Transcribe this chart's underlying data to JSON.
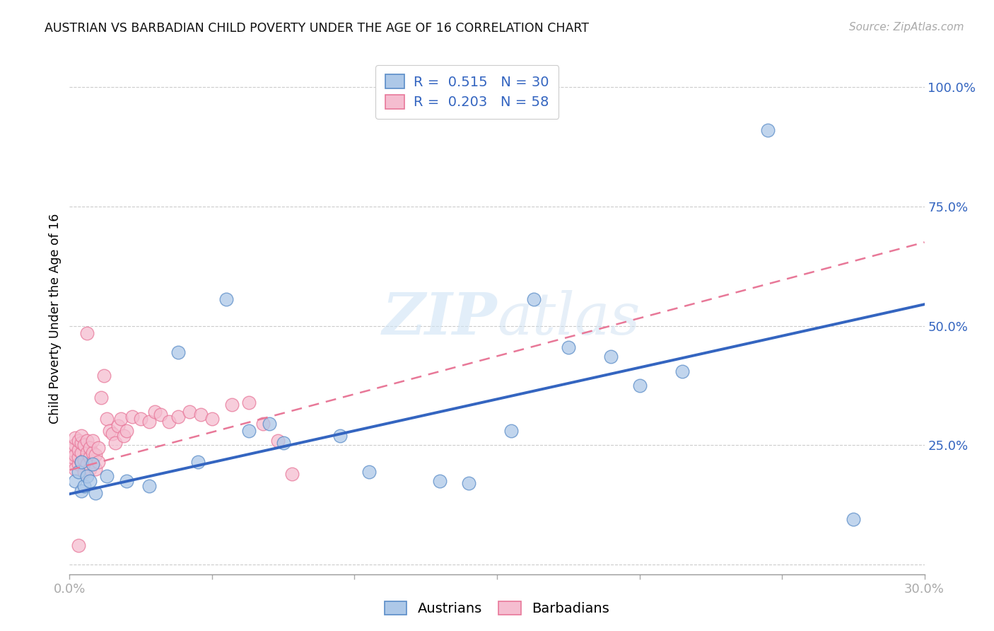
{
  "title": "AUSTRIAN VS BARBADIAN CHILD POVERTY UNDER THE AGE OF 16 CORRELATION CHART",
  "source": "Source: ZipAtlas.com",
  "ylabel": "Child Poverty Under the Age of 16",
  "xlim": [
    0.0,
    0.3
  ],
  "ylim": [
    -0.02,
    1.05
  ],
  "ytick_positions": [
    0.0,
    0.25,
    0.5,
    0.75,
    1.0
  ],
  "ytick_labels": [
    "",
    "25.0%",
    "50.0%",
    "75.0%",
    "100.0%"
  ],
  "xtick_positions": [
    0.0,
    0.05,
    0.1,
    0.15,
    0.2,
    0.25,
    0.3
  ],
  "xtick_labels": [
    "0.0%",
    "",
    "",
    "",
    "",
    "",
    "30.0%"
  ],
  "color_austrians_fill": "#adc8e8",
  "color_austrians_edge": "#5b8dc8",
  "color_barbadians_fill": "#f5bdd0",
  "color_barbadians_edge": "#e8789a",
  "color_trend_blue": "#3465c0",
  "color_trend_pink": "#e87898",
  "background_color": "#ffffff",
  "watermark": "ZIPatlas",
  "aus_trend_x0": 0.0,
  "aus_trend_y0": 0.148,
  "aus_trend_x1": 0.3,
  "aus_trend_y1": 0.545,
  "barb_trend_x0": 0.0,
  "barb_trend_y0": 0.198,
  "barb_trend_x1": 0.3,
  "barb_trend_y1": 0.675,
  "austrians_x": [
    0.002,
    0.003,
    0.004,
    0.004,
    0.005,
    0.006,
    0.007,
    0.008,
    0.009,
    0.013,
    0.02,
    0.028,
    0.038,
    0.045,
    0.055,
    0.063,
    0.07,
    0.075,
    0.095,
    0.105,
    0.13,
    0.14,
    0.155,
    0.163,
    0.175,
    0.19,
    0.2,
    0.215,
    0.245,
    0.275
  ],
  "austrians_y": [
    0.175,
    0.195,
    0.155,
    0.215,
    0.165,
    0.185,
    0.175,
    0.21,
    0.15,
    0.185,
    0.175,
    0.165,
    0.445,
    0.215,
    0.555,
    0.28,
    0.295,
    0.255,
    0.27,
    0.195,
    0.175,
    0.17,
    0.28,
    0.555,
    0.455,
    0.435,
    0.375,
    0.405,
    0.91,
    0.095
  ],
  "barbadians_x": [
    0.001,
    0.001,
    0.001,
    0.002,
    0.002,
    0.002,
    0.002,
    0.003,
    0.003,
    0.003,
    0.003,
    0.004,
    0.004,
    0.004,
    0.004,
    0.005,
    0.005,
    0.005,
    0.006,
    0.006,
    0.006,
    0.007,
    0.007,
    0.007,
    0.008,
    0.008,
    0.008,
    0.009,
    0.009,
    0.01,
    0.01,
    0.011,
    0.012,
    0.013,
    0.014,
    0.015,
    0.016,
    0.017,
    0.018,
    0.019,
    0.02,
    0.022,
    0.025,
    0.028,
    0.03,
    0.032,
    0.035,
    0.038,
    0.042,
    0.046,
    0.05,
    0.057,
    0.063,
    0.068,
    0.073,
    0.078,
    0.006,
    0.003
  ],
  "barbadians_y": [
    0.215,
    0.225,
    0.24,
    0.2,
    0.23,
    0.25,
    0.265,
    0.21,
    0.225,
    0.24,
    0.26,
    0.215,
    0.235,
    0.255,
    0.27,
    0.195,
    0.22,
    0.25,
    0.21,
    0.235,
    0.26,
    0.2,
    0.225,
    0.245,
    0.215,
    0.235,
    0.26,
    0.2,
    0.23,
    0.215,
    0.245,
    0.35,
    0.395,
    0.305,
    0.28,
    0.275,
    0.255,
    0.29,
    0.305,
    0.27,
    0.28,
    0.31,
    0.305,
    0.3,
    0.32,
    0.315,
    0.3,
    0.31,
    0.32,
    0.315,
    0.305,
    0.335,
    0.34,
    0.295,
    0.26,
    0.19,
    0.485,
    0.04
  ]
}
